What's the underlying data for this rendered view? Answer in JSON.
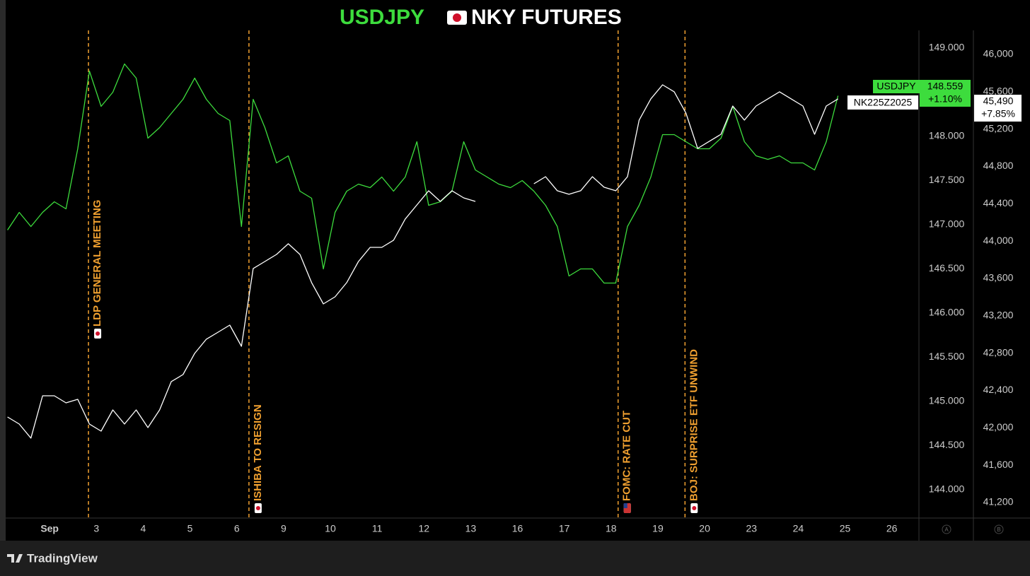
{
  "chart_data": {
    "type": "line",
    "title": "USDJPY",
    "subtitle": "NKY FUTURES",
    "grid": false,
    "xlim": [
      -0.94,
      18.58
    ],
    "xticks": [
      {
        "value": 0,
        "label": "Sep"
      },
      {
        "value": 1,
        "label": "3"
      },
      {
        "value": 2,
        "label": "4"
      },
      {
        "value": 3,
        "label": "5"
      },
      {
        "value": 4,
        "label": "6"
      },
      {
        "value": 5,
        "label": "9"
      },
      {
        "value": 6,
        "label": "10"
      },
      {
        "value": 7,
        "label": "11"
      },
      {
        "value": 8,
        "label": "12"
      },
      {
        "value": 9,
        "label": "13"
      },
      {
        "value": 10,
        "label": "16"
      },
      {
        "value": 11,
        "label": "17"
      },
      {
        "value": 12,
        "label": "18"
      },
      {
        "value": 13,
        "label": "19"
      },
      {
        "value": 14,
        "label": "20"
      },
      {
        "value": 15,
        "label": "23"
      },
      {
        "value": 16,
        "label": "24"
      },
      {
        "value": 17,
        "label": "25"
      },
      {
        "value": 18,
        "label": "26"
      }
    ],
    "ylim": [
      143.68,
      149.2
    ],
    "yticks": [
      {
        "value": 144,
        "label": "144.000"
      },
      {
        "value": 144.5,
        "label": "144.500"
      },
      {
        "value": 145,
        "label": "145.000"
      },
      {
        "value": 145.5,
        "label": "145.500"
      },
      {
        "value": 146,
        "label": "146.000"
      },
      {
        "value": 146.5,
        "label": "146.500"
      },
      {
        "value": 147,
        "label": "147.000"
      },
      {
        "value": 147.5,
        "label": "147.500"
      },
      {
        "value": 148,
        "label": "148.000"
      },
      {
        "value": 148.5,
        "label": "148.500"
      },
      {
        "value": 149,
        "label": "149.000"
      }
    ],
    "y_axis_name": "A",
    "y2lim": [
      41033,
      46257
    ],
    "y2ticks": [
      {
        "value": 41200,
        "label": "41,200"
      },
      {
        "value": 41600,
        "label": "41,600"
      },
      {
        "value": 42000,
        "label": "42,000"
      },
      {
        "value": 42400,
        "label": "42,400"
      },
      {
        "value": 42800,
        "label": "42,800"
      },
      {
        "value": 43200,
        "label": "43,200"
      },
      {
        "value": 43600,
        "label": "43,600"
      },
      {
        "value": 44000,
        "label": "44,000"
      },
      {
        "value": 44400,
        "label": "44,400"
      },
      {
        "value": 44800,
        "label": "44,800"
      },
      {
        "value": 45200,
        "label": "45,200"
      },
      {
        "value": 45600,
        "label": "45,600"
      },
      {
        "value": 46000,
        "label": "46,000"
      }
    ],
    "y2_axis_name": "B",
    "x": [
      -0.9,
      -0.65,
      -0.4,
      -0.15,
      0.1,
      0.35,
      0.6,
      0.85,
      1.1,
      1.35,
      1.6,
      1.85,
      2.1,
      2.35,
      2.6,
      2.85,
      3.1,
      3.35,
      3.6,
      3.85,
      4.1,
      4.35,
      4.6,
      4.85,
      5.1,
      5.35,
      5.6,
      5.85,
      6.1,
      6.35,
      6.6,
      6.85,
      7.1,
      7.35,
      7.6,
      7.85,
      8.1,
      8.35,
      8.6,
      8.85,
      9.1,
      9.35,
      9.6,
      9.85,
      10.1,
      10.35,
      10.6,
      10.85,
      11.1,
      11.35,
      11.6,
      11.85,
      12.1,
      12.35,
      12.6,
      12.85,
      13.1,
      13.35,
      13.6,
      13.85,
      14.1,
      14.35,
      14.6,
      14.85,
      15.1,
      15.35,
      15.6,
      15.85,
      16.1,
      16.35,
      16.6,
      16.85
    ],
    "series": [
      {
        "name": "USDJPY",
        "color": "#3ddc3d",
        "axis": "y",
        "values": [
          146.94,
          147.14,
          146.98,
          147.14,
          147.26,
          147.18,
          147.86,
          148.74,
          148.34,
          148.5,
          148.82,
          148.66,
          147.98,
          148.1,
          148.26,
          148.42,
          148.66,
          148.42,
          148.26,
          148.18,
          146.98,
          148.42,
          148.1,
          147.7,
          147.78,
          147.38,
          147.3,
          146.5,
          147.14,
          147.38,
          147.46,
          147.42,
          147.54,
          147.38,
          147.54,
          147.94,
          147.22,
          147.26,
          147.38,
          147.94,
          147.62,
          147.54,
          147.46,
          147.42,
          147.5,
          147.38,
          147.22,
          146.98,
          146.42,
          146.5,
          146.5,
          146.34,
          146.34,
          146.98,
          147.22,
          147.54,
          148.02,
          148.02,
          147.94,
          147.86,
          147.86,
          147.98,
          148.34,
          147.94,
          147.78,
          147.74,
          147.78,
          147.7,
          147.7,
          147.62,
          147.94,
          148.46
        ]
      },
      {
        "name": "NK225Z2025",
        "color": "#ffffff",
        "axis": "y2",
        "values": [
          42116,
          42040,
          41889,
          42343,
          42343,
          42267,
          42305,
          42040,
          41964,
          42191,
          42040,
          42191,
          42002,
          42191,
          42495,
          42570,
          42797,
          42949,
          43024,
          43100,
          42873,
          43706,
          43781,
          43857,
          43971,
          43857,
          43555,
          43327,
          43403,
          43555,
          43781,
          43933,
          43933,
          44009,
          44236,
          44387,
          44539,
          44425,
          44539,
          44463,
          44425,
          null,
          null,
          null,
          null,
          44614,
          44690,
          44539,
          44501,
          44539,
          44690,
          44577,
          44539,
          44690,
          45296,
          45523,
          45674,
          45599,
          45372,
          44993,
          45069,
          45144,
          45447,
          45296,
          45447,
          45523,
          45599,
          45523,
          45447,
          45144,
          45447,
          45523
        ]
      }
    ],
    "last_price_labels": [
      {
        "price": "148.559",
        "change": "+1.10%"
      },
      {
        "price": "45,490",
        "change": "+7.85%"
      }
    ],
    "annotations": [
      {
        "x": 0.83,
        "text": "LDP GENERAL MEETING",
        "color": "#f0a030"
      },
      {
        "x": 4.26,
        "text": "ISHIBA TO RESIGN",
        "color": "#f0a030"
      },
      {
        "x": 12.15,
        "text": "FOMC: RATE CUT",
        "color": "#f0a030"
      },
      {
        "x": 13.58,
        "text": "BOJ: SURPRISE ETF UNWIND",
        "color": "#f0a030"
      }
    ],
    "brand": "TradingView"
  }
}
